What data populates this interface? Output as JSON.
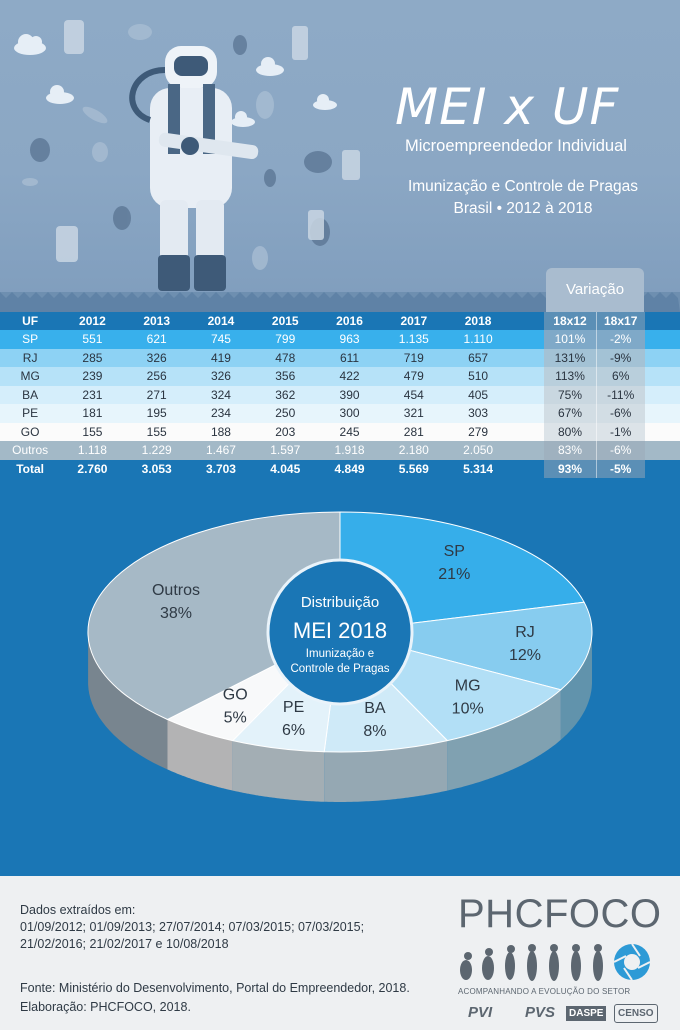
{
  "header": {
    "title": "MEI x UF",
    "subtitle": "Microempreendedor Individual",
    "line1": "Imunização e Controle de Pragas",
    "line2": "Brasil • 2012 à 2018",
    "variation_label": "Variação"
  },
  "table": {
    "uf_header": "UF",
    "years": [
      "2012",
      "2013",
      "2014",
      "2015",
      "2016",
      "2017",
      "2018"
    ],
    "var_headers": [
      "18x12",
      "18x17"
    ],
    "rows": [
      {
        "uf": "SP",
        "values": [
          "551",
          "621",
          "745",
          "799",
          "963",
          "1.135",
          "1.110"
        ],
        "var": [
          "101%",
          "-2%"
        ]
      },
      {
        "uf": "RJ",
        "values": [
          "285",
          "326",
          "419",
          "478",
          "611",
          "719",
          "657"
        ],
        "var": [
          "131%",
          "-9%"
        ]
      },
      {
        "uf": "MG",
        "values": [
          "239",
          "256",
          "326",
          "356",
          "422",
          "479",
          "510"
        ],
        "var": [
          "113%",
          "6%"
        ]
      },
      {
        "uf": "BA",
        "values": [
          "231",
          "271",
          "324",
          "362",
          "390",
          "454",
          "405"
        ],
        "var": [
          "75%",
          "-11%"
        ]
      },
      {
        "uf": "PE",
        "values": [
          "181",
          "195",
          "234",
          "250",
          "300",
          "321",
          "303"
        ],
        "var": [
          "67%",
          "-6%"
        ]
      },
      {
        "uf": "GO",
        "values": [
          "155",
          "155",
          "188",
          "203",
          "245",
          "281",
          "279"
        ],
        "var": [
          "80%",
          "-1%"
        ]
      },
      {
        "uf": "Outros",
        "values": [
          "1.118",
          "1.229",
          "1.467",
          "1.597",
          "1.918",
          "2.180",
          "2.050"
        ],
        "var": [
          "83%",
          "-6%"
        ]
      }
    ],
    "total": {
      "uf": "Total",
      "values": [
        "2.760",
        "3.053",
        "3.703",
        "4.045",
        "4.849",
        "5.569",
        "5.314"
      ],
      "var": [
        "93%",
        "-5%"
      ]
    }
  },
  "chart_data": {
    "type": "pie",
    "title": "Distribuição",
    "title2": "MEI 2018",
    "subtitle_lines": [
      "Imunização e",
      "Controle de Pragas"
    ],
    "slices": [
      {
        "label": "SP",
        "value": 21,
        "display": "21%",
        "color": "#36aeea"
      },
      {
        "label": "RJ",
        "value": 12,
        "display": "12%",
        "color": "#87ccef"
      },
      {
        "label": "MG",
        "value": 10,
        "display": "10%",
        "color": "#b2dff6"
      },
      {
        "label": "BA",
        "value": 8,
        "display": "8%",
        "color": "#cfeaf8"
      },
      {
        "label": "PE",
        "value": 6,
        "display": "6%",
        "color": "#e3f2fa"
      },
      {
        "label": "GO",
        "value": 5,
        "display": "5%",
        "color": "#f8f9fa"
      },
      {
        "label": "Outros",
        "value": 38,
        "display": "38%",
        "color": "#a6b9c6"
      }
    ]
  },
  "footer": {
    "dados_label": "Dados extraídos em:",
    "dados_dates1": "01/09/2012; 01/09/2013; 27/07/2014; 07/03/2015; 07/03/2015;",
    "dados_dates2": "21/02/2016; 21/02/2017 e 10/08/2018",
    "fonte": "Fonte: Ministério do Desenvolvimento, Portal do Empreendedor, 2018.",
    "elaboracao": "Elaboração: PHCFOCO, 2018.",
    "logo": "PHCFOCO",
    "logo_tagline": "ACOMPANHANDO A EVOLUÇÃO DO SETOR",
    "partners": [
      "PVI",
      "PVS",
      "DASPE",
      "CENSO"
    ]
  }
}
